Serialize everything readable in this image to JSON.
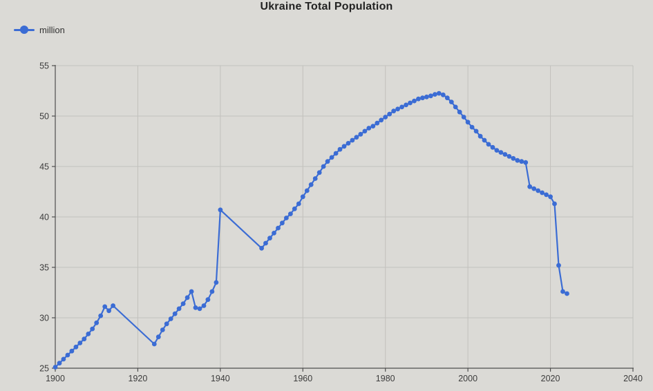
{
  "title": "Ukraine Total Population",
  "legend": {
    "label": "million"
  },
  "colors": {
    "background": "#dbdad6",
    "grid": "#c2c1bd",
    "axis": "#4d4d4d",
    "tick_text": "#3c3c3c",
    "title_text": "#232323",
    "series": "#3b6cd4"
  },
  "chart_data": {
    "type": "line",
    "title": "Ukraine Total Population",
    "xlabel": "",
    "ylabel": "",
    "xlim": [
      1900,
      2040
    ],
    "ylim": [
      25,
      55
    ],
    "x_ticks": [
      1900,
      1920,
      1940,
      1960,
      1980,
      2000,
      2020,
      2040
    ],
    "y_ticks": [
      25,
      30,
      35,
      40,
      45,
      50,
      55
    ],
    "grid": true,
    "legend_position": "top-left",
    "marker": "circle",
    "series": [
      {
        "name": "million",
        "color": "#3b6cd4",
        "points": [
          [
            1900,
            25.1
          ],
          [
            1901,
            25.5
          ],
          [
            1902,
            25.9
          ],
          [
            1903,
            26.3
          ],
          [
            1904,
            26.7
          ],
          [
            1905,
            27.1
          ],
          [
            1906,
            27.5
          ],
          [
            1907,
            27.9
          ],
          [
            1908,
            28.4
          ],
          [
            1909,
            28.9
          ],
          [
            1910,
            29.5
          ],
          [
            1911,
            30.2
          ],
          [
            1912,
            31.1
          ],
          [
            1913,
            30.7
          ],
          [
            1914,
            31.2
          ],
          [
            1924,
            27.4
          ],
          [
            1925,
            28.1
          ],
          [
            1926,
            28.8
          ],
          [
            1927,
            29.4
          ],
          [
            1928,
            29.9
          ],
          [
            1929,
            30.4
          ],
          [
            1930,
            30.9
          ],
          [
            1931,
            31.4
          ],
          [
            1932,
            32.0
          ],
          [
            1933,
            32.6
          ],
          [
            1934,
            31.0
          ],
          [
            1935,
            30.9
          ],
          [
            1936,
            31.2
          ],
          [
            1937,
            31.8
          ],
          [
            1938,
            32.6
          ],
          [
            1939,
            33.5
          ],
          [
            1940,
            40.7
          ],
          [
            1950,
            36.9
          ],
          [
            1951,
            37.4
          ],
          [
            1952,
            37.9
          ],
          [
            1953,
            38.4
          ],
          [
            1954,
            38.9
          ],
          [
            1955,
            39.4
          ],
          [
            1956,
            39.9
          ],
          [
            1957,
            40.3
          ],
          [
            1958,
            40.8
          ],
          [
            1959,
            41.3
          ],
          [
            1960,
            42.0
          ],
          [
            1961,
            42.6
          ],
          [
            1962,
            43.2
          ],
          [
            1963,
            43.8
          ],
          [
            1964,
            44.4
          ],
          [
            1965,
            45.0
          ],
          [
            1966,
            45.5
          ],
          [
            1967,
            45.9
          ],
          [
            1968,
            46.3
          ],
          [
            1969,
            46.7
          ],
          [
            1970,
            47.0
          ],
          [
            1971,
            47.3
          ],
          [
            1972,
            47.6
          ],
          [
            1973,
            47.9
          ],
          [
            1974,
            48.2
          ],
          [
            1975,
            48.5
          ],
          [
            1976,
            48.8
          ],
          [
            1977,
            49.0
          ],
          [
            1978,
            49.3
          ],
          [
            1979,
            49.6
          ],
          [
            1980,
            49.9
          ],
          [
            1981,
            50.2
          ],
          [
            1982,
            50.5
          ],
          [
            1983,
            50.7
          ],
          [
            1984,
            50.9
          ],
          [
            1985,
            51.1
          ],
          [
            1986,
            51.3
          ],
          [
            1987,
            51.5
          ],
          [
            1988,
            51.7
          ],
          [
            1989,
            51.8
          ],
          [
            1990,
            51.9
          ],
          [
            1991,
            52.0
          ],
          [
            1992,
            52.15
          ],
          [
            1993,
            52.25
          ],
          [
            1994,
            52.1
          ],
          [
            1995,
            51.8
          ],
          [
            1996,
            51.4
          ],
          [
            1997,
            50.9
          ],
          [
            1998,
            50.4
          ],
          [
            1999,
            49.9
          ],
          [
            2000,
            49.4
          ],
          [
            2001,
            48.9
          ],
          [
            2002,
            48.5
          ],
          [
            2003,
            48.0
          ],
          [
            2004,
            47.6
          ],
          [
            2005,
            47.2
          ],
          [
            2006,
            46.9
          ],
          [
            2007,
            46.6
          ],
          [
            2008,
            46.4
          ],
          [
            2009,
            46.2
          ],
          [
            2010,
            46.0
          ],
          [
            2011,
            45.8
          ],
          [
            2012,
            45.6
          ],
          [
            2013,
            45.5
          ],
          [
            2014,
            45.4
          ],
          [
            2015,
            43.0
          ],
          [
            2016,
            42.8
          ],
          [
            2017,
            42.6
          ],
          [
            2018,
            42.4
          ],
          [
            2019,
            42.2
          ],
          [
            2020,
            42.0
          ],
          [
            2021,
            41.3
          ],
          [
            2022,
            35.2
          ],
          [
            2023,
            32.6
          ],
          [
            2024,
            32.4
          ]
        ]
      }
    ]
  }
}
